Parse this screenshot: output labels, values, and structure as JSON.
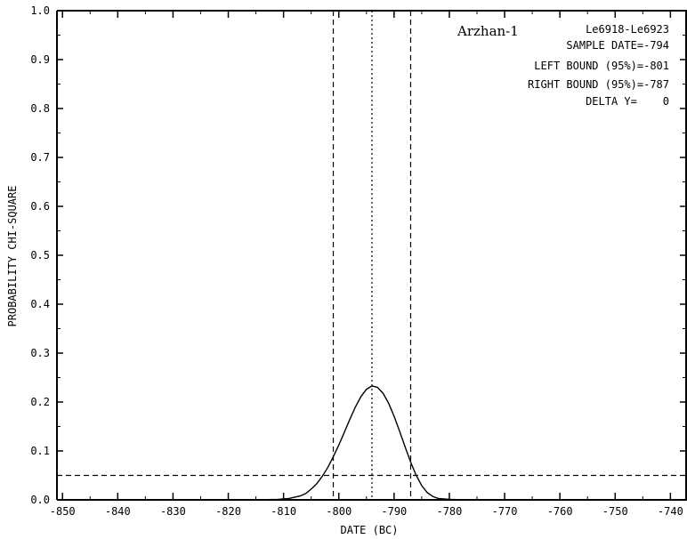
{
  "chart_data": {
    "type": "line",
    "title": "",
    "xlabel": "DATE (BC)",
    "ylabel": "PROBABILITY CHI-SQUARE",
    "xlim": [
      -851,
      -737
    ],
    "ylim": [
      0,
      1.0
    ],
    "x_ticks": [
      -850,
      -840,
      -830,
      -820,
      -810,
      -800,
      -790,
      -780,
      -770,
      -760,
      -750,
      -740
    ],
    "y_ticks": [
      "0.0",
      "0.1",
      "0.2",
      "0.3",
      "0.4",
      "0.5",
      "0.6",
      "0.7",
      "0.8",
      "0.9",
      "1.0"
    ],
    "grid": false,
    "series": [
      {
        "x": [
          -851,
          -815,
          -811,
          -809,
          -807,
          -806,
          -805,
          -804,
          -803,
          -802,
          -801,
          -800,
          -799,
          -798,
          -797,
          -796,
          -795,
          -794,
          -793,
          -792,
          -791,
          -790,
          -789,
          -788,
          -787,
          -786,
          -785,
          -784,
          -783,
          -782,
          -780,
          -776,
          -737
        ],
        "values": [
          0,
          0,
          0.001,
          0.003,
          0.008,
          0.013,
          0.022,
          0.033,
          0.048,
          0.066,
          0.088,
          0.112,
          0.138,
          0.165,
          0.19,
          0.211,
          0.226,
          0.233,
          0.23,
          0.218,
          0.198,
          0.171,
          0.14,
          0.108,
          0.077,
          0.05,
          0.029,
          0.015,
          0.007,
          0.003,
          0.001,
          0,
          0
        ],
        "style": "solid"
      }
    ],
    "reference_lines": {
      "vertical_dashed": [
        -801,
        -787
      ],
      "vertical_dotted": [
        -794
      ],
      "horizontal_dashed": [
        0.05
      ]
    },
    "annotations": {
      "site": "Arzhan-1",
      "lab_codes": "Le6918-Le6923",
      "lines": [
        "SAMPLE DATE=-794",
        "LEFT BOUND (95%)=-801",
        "RIGHT BOUND (95%)=-787",
        "DELTA Y=    0"
      ]
    }
  }
}
